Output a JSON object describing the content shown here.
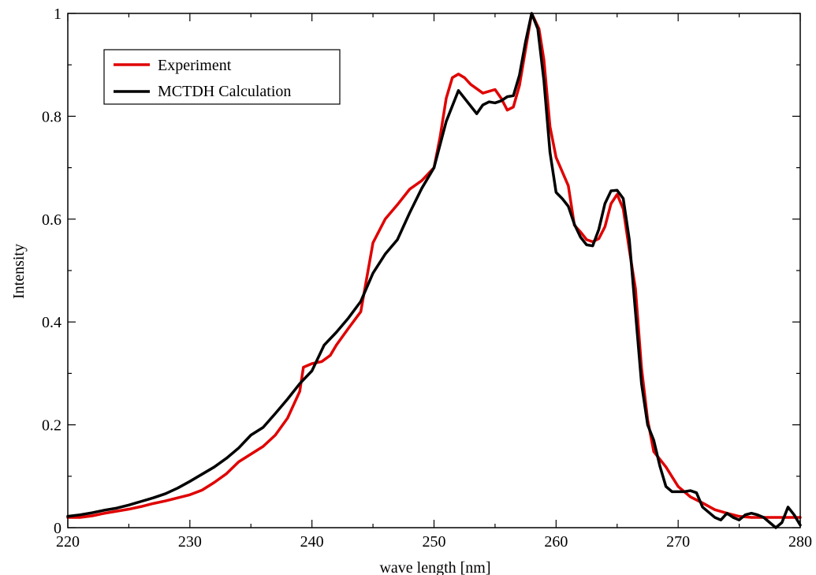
{
  "chart_data": {
    "type": "line",
    "title": "",
    "xlabel": "wave length [nm]",
    "ylabel": "Intensity",
    "xlim": [
      220,
      280
    ],
    "ylim": [
      0,
      1
    ],
    "xticks": [
      220,
      230,
      240,
      250,
      260,
      270,
      280
    ],
    "xtick_labels": [
      "220",
      "230",
      "240",
      "250",
      "260",
      "270",
      "280"
    ],
    "yticks": [
      0,
      0.2,
      0.4,
      0.6,
      0.8,
      1
    ],
    "ytick_labels": [
      "0",
      "0.2",
      "0.4",
      "0.6",
      "0.8",
      "1"
    ],
    "grid": false,
    "legend_position": "top-left",
    "series": [
      {
        "name": "Experiment",
        "color": "#e00000",
        "x": [
          220,
          221,
          222,
          223,
          224,
          225,
          226,
          227,
          228,
          229,
          230,
          231,
          232,
          233,
          234,
          235,
          236,
          237,
          238,
          239,
          239.3,
          240,
          240.8,
          241.5,
          242,
          243,
          244,
          245,
          246,
          247,
          248,
          249,
          250,
          250.5,
          251,
          251.5,
          252,
          252.5,
          253,
          254,
          255,
          255.5,
          256,
          256.5,
          257,
          258,
          258.6,
          259,
          259.5,
          260,
          261,
          261.5,
          262,
          262.5,
          263,
          263.5,
          264,
          264.5,
          265,
          265.5,
          266,
          266.5,
          267,
          267.5,
          268,
          269,
          270,
          271,
          272,
          273,
          274,
          275,
          276,
          277,
          278,
          279,
          280
        ],
        "y": [
          0.02,
          0.02,
          0.023,
          0.028,
          0.032,
          0.036,
          0.041,
          0.047,
          0.052,
          0.058,
          0.064,
          0.073,
          0.088,
          0.105,
          0.128,
          0.143,
          0.158,
          0.18,
          0.213,
          0.265,
          0.312,
          0.319,
          0.323,
          0.335,
          0.355,
          0.388,
          0.42,
          0.554,
          0.6,
          0.628,
          0.658,
          0.675,
          0.7,
          0.76,
          0.835,
          0.875,
          0.882,
          0.875,
          0.862,
          0.845,
          0.852,
          0.835,
          0.812,
          0.818,
          0.86,
          1.0,
          0.97,
          0.91,
          0.78,
          0.72,
          0.665,
          0.588,
          0.575,
          0.56,
          0.556,
          0.562,
          0.585,
          0.63,
          0.648,
          0.62,
          0.54,
          0.465,
          0.31,
          0.21,
          0.148,
          0.118,
          0.08,
          0.06,
          0.048,
          0.035,
          0.028,
          0.022,
          0.02,
          0.02,
          0.02,
          0.02,
          0.02
        ]
      },
      {
        "name": "MCTDH Calculation",
        "color": "#000000",
        "x": [
          220,
          221,
          222,
          223,
          224,
          225,
          226,
          227,
          228,
          229,
          230,
          231,
          232,
          233,
          234,
          235,
          236,
          237,
          238,
          239,
          240,
          241,
          242,
          243,
          244,
          245,
          246,
          247,
          248,
          249,
          250,
          251,
          252,
          253,
          253.5,
          254,
          254.5,
          255,
          255.5,
          256,
          256.5,
          257,
          257.5,
          258,
          258.5,
          259,
          259.5,
          260,
          260.5,
          261,
          261.5,
          262,
          262.5,
          263,
          263.5,
          264,
          264.5,
          265,
          265.5,
          266,
          266.5,
          267,
          267.5,
          268,
          268.5,
          269,
          269.5,
          270,
          270.5,
          271,
          271.5,
          272,
          272.5,
          273,
          273.5,
          274,
          274.5,
          275,
          275.5,
          276,
          276.5,
          277,
          277.5,
          278,
          278.5,
          279,
          279.5,
          280
        ],
        "y": [
          0.022,
          0.025,
          0.029,
          0.034,
          0.038,
          0.044,
          0.051,
          0.058,
          0.066,
          0.077,
          0.09,
          0.104,
          0.118,
          0.135,
          0.155,
          0.18,
          0.195,
          0.222,
          0.25,
          0.28,
          0.305,
          0.355,
          0.38,
          0.408,
          0.44,
          0.495,
          0.532,
          0.56,
          0.612,
          0.66,
          0.7,
          0.79,
          0.85,
          0.82,
          0.805,
          0.822,
          0.828,
          0.826,
          0.83,
          0.838,
          0.84,
          0.88,
          0.945,
          1.0,
          0.97,
          0.87,
          0.73,
          0.652,
          0.64,
          0.625,
          0.59,
          0.565,
          0.55,
          0.548,
          0.58,
          0.63,
          0.655,
          0.656,
          0.64,
          0.56,
          0.42,
          0.28,
          0.2,
          0.17,
          0.12,
          0.08,
          0.07,
          0.07,
          0.07,
          0.072,
          0.068,
          0.04,
          0.03,
          0.02,
          0.015,
          0.028,
          0.02,
          0.015,
          0.025,
          0.028,
          0.025,
          0.02,
          0.01,
          0.0,
          0.01,
          0.04,
          0.025,
          0.005
        ]
      }
    ]
  }
}
